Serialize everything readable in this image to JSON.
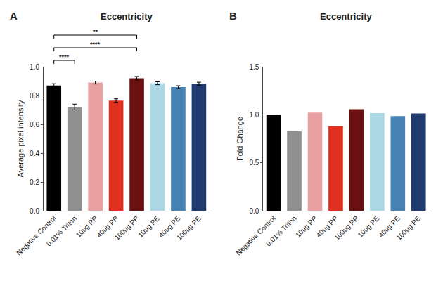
{
  "chart_data": [
    {
      "type": "bar",
      "title": "Eccentricity",
      "categories": [
        "Negative Control",
        "0.01% Triton",
        "10ug PP",
        "40ug PP",
        "100ug PP",
        "10ug PE",
        "40ug PE",
        "100ug PE"
      ],
      "values": [
        0.87,
        0.72,
        0.89,
        0.765,
        0.92,
        0.885,
        0.858,
        0.882
      ],
      "errors": [
        0.012,
        0.02,
        0.01,
        0.012,
        0.012,
        0.01,
        0.01,
        0.01
      ],
      "colors": [
        "#000000",
        "#909090",
        "#E8A0A0",
        "#E03020",
        "#6B1010",
        "#ADD8E6",
        "#4682B4",
        "#1E3A6E"
      ],
      "ylabel": "Average pixel intensity",
      "ylim": [
        0.0,
        1.0
      ],
      "yticks": [
        {
          "value": 0.0,
          "label": "0.0"
        },
        0.2,
        0.4,
        0.6,
        0.8,
        {
          "value": 1.0,
          "label": "1.0"
        }
      ],
      "grid": false,
      "annotations": [
        {
          "text": "A"
        },
        {
          "text": "****",
          "from": "Negative Control",
          "to": "0.01% Triton"
        },
        {
          "text": "****",
          "from": "Negative Control",
          "to": "100ug PP"
        },
        {
          "text": "**",
          "from": "Negative Control",
          "to": "100ug PP"
        }
      ]
    },
    {
      "type": "bar",
      "title": "Eccentricity",
      "categories": [
        "Negative Control",
        "0.01% Triton",
        "10ug PP",
        "40ug PP",
        "100ug PP",
        "10ug PE",
        "40ug PE",
        "100ug PE"
      ],
      "values": [
        1.0,
        0.828,
        1.023,
        0.88,
        1.058,
        1.017,
        0.986,
        1.014
      ],
      "colors": [
        "#000000",
        "#909090",
        "#E8A0A0",
        "#E03020",
        "#6B1010",
        "#ADD8E6",
        "#4682B4",
        "#1E3A6E"
      ],
      "ylabel": "Fold Change",
      "ylim": [
        0.0,
        1.5
      ],
      "yticks": [
        {
          "value": 0.0,
          "label": "0.0"
        },
        0.5,
        {
          "value": 1.0,
          "label": "1.0"
        },
        1.5
      ],
      "grid": false,
      "annotations": [
        {
          "text": "B"
        }
      ]
    }
  ]
}
